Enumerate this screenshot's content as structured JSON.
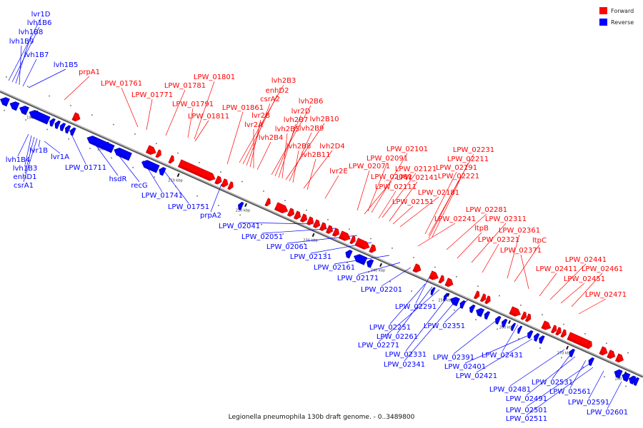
{
  "colors": {
    "forward": "#ff0000",
    "reverse": "#0000ff",
    "forward_dark": "#b00000",
    "reverse_dark": "#0000a0",
    "backbone": "#9a9a9a"
  },
  "legend": [
    {
      "label": "Forward",
      "strand": "forward"
    },
    {
      "label": "Reverse",
      "strand": "reverse"
    }
  ],
  "caption": "Legionella pneumophila 130b draft genome. - 0..3489800",
  "ticks": [
    {
      "label": "190 kbp",
      "s": 0.06
    },
    {
      "label": "200 kbp",
      "s": 0.17
    },
    {
      "label": "210 kbp",
      "s": 0.28
    },
    {
      "label": "220 kbp",
      "s": 0.385
    },
    {
      "label": "230 kbp",
      "s": 0.49
    },
    {
      "label": "240 kbp",
      "s": 0.595
    },
    {
      "label": "250 kbp",
      "s": 0.7
    },
    {
      "label": "260 kbp",
      "s": 0.795
    },
    {
      "label": "270 kbp",
      "s": 0.885
    },
    {
      "label": "280 kbp",
      "s": 0.975
    }
  ],
  "genes": [
    {
      "s": 0.005,
      "len": 0.012,
      "strand": "reverse"
    },
    {
      "s": 0.02,
      "len": 0.012,
      "strand": "reverse"
    },
    {
      "s": 0.035,
      "len": 0.012,
      "strand": "reverse"
    },
    {
      "s": 0.05,
      "len": 0.03,
      "strand": "reverse"
    },
    {
      "s": 0.082,
      "len": 0.006,
      "strand": "reverse"
    },
    {
      "s": 0.09,
      "len": 0.006,
      "strand": "reverse"
    },
    {
      "s": 0.098,
      "len": 0.006,
      "strand": "reverse"
    },
    {
      "s": 0.106,
      "len": 0.006,
      "strand": "reverse"
    },
    {
      "s": 0.114,
      "len": 0.006,
      "strand": "reverse"
    },
    {
      "s": 0.14,
      "len": 0.04,
      "strand": "reverse"
    },
    {
      "s": 0.182,
      "len": 0.025,
      "strand": "reverse"
    },
    {
      "s": 0.225,
      "len": 0.025,
      "strand": "reverse"
    },
    {
      "s": 0.252,
      "len": 0.008,
      "strand": "reverse"
    },
    {
      "s": 0.11,
      "len": 0.01,
      "strand": "forward"
    },
    {
      "s": 0.225,
      "len": 0.013,
      "strand": "forward"
    },
    {
      "s": 0.24,
      "len": 0.006,
      "strand": "forward"
    },
    {
      "s": 0.26,
      "len": 0.006,
      "strand": "forward"
    },
    {
      "s": 0.275,
      "len": 0.055,
      "strand": "forward"
    },
    {
      "s": 0.332,
      "len": 0.008,
      "strand": "forward"
    },
    {
      "s": 0.342,
      "len": 0.008,
      "strand": "forward"
    },
    {
      "s": 0.352,
      "len": 0.006,
      "strand": "forward"
    },
    {
      "s": 0.375,
      "len": 0.006,
      "strand": "reverse"
    },
    {
      "s": 0.41,
      "len": 0.006,
      "strand": "forward"
    },
    {
      "s": 0.425,
      "len": 0.018,
      "strand": "forward"
    },
    {
      "s": 0.445,
      "len": 0.008,
      "strand": "forward"
    },
    {
      "s": 0.455,
      "len": 0.008,
      "strand": "forward"
    },
    {
      "s": 0.465,
      "len": 0.008,
      "strand": "forward"
    },
    {
      "s": 0.475,
      "len": 0.008,
      "strand": "forward"
    },
    {
      "s": 0.485,
      "len": 0.008,
      "strand": "forward"
    },
    {
      "s": 0.495,
      "len": 0.008,
      "strand": "forward"
    },
    {
      "s": 0.505,
      "len": 0.008,
      "strand": "forward"
    },
    {
      "s": 0.515,
      "len": 0.008,
      "strand": "forward"
    },
    {
      "s": 0.525,
      "len": 0.015,
      "strand": "forward"
    },
    {
      "s": 0.542,
      "len": 0.006,
      "strand": "forward"
    },
    {
      "s": 0.55,
      "len": 0.02,
      "strand": "forward"
    },
    {
      "s": 0.572,
      "len": 0.008,
      "strand": "forward"
    },
    {
      "s": 0.542,
      "len": 0.008,
      "strand": "reverse"
    },
    {
      "s": 0.555,
      "len": 0.018,
      "strand": "reverse"
    },
    {
      "s": 0.575,
      "len": 0.008,
      "strand": "reverse"
    },
    {
      "s": 0.64,
      "len": 0.01,
      "strand": "forward"
    },
    {
      "s": 0.665,
      "len": 0.012,
      "strand": "forward"
    },
    {
      "s": 0.68,
      "len": 0.006,
      "strand": "forward"
    },
    {
      "s": 0.69,
      "len": 0.01,
      "strand": "forward"
    },
    {
      "s": 0.675,
      "len": 0.004,
      "strand": "reverse"
    },
    {
      "s": 0.695,
      "len": 0.004,
      "strand": "reverse"
    },
    {
      "s": 0.705,
      "len": 0.012,
      "strand": "reverse"
    },
    {
      "s": 0.72,
      "len": 0.006,
      "strand": "reverse"
    },
    {
      "s": 0.735,
      "len": 0.006,
      "strand": "forward"
    },
    {
      "s": 0.745,
      "len": 0.006,
      "strand": "forward"
    },
    {
      "s": 0.752,
      "len": 0.006,
      "strand": "forward"
    },
    {
      "s": 0.735,
      "len": 0.006,
      "strand": "reverse"
    },
    {
      "s": 0.745,
      "len": 0.01,
      "strand": "reverse"
    },
    {
      "s": 0.758,
      "len": 0.006,
      "strand": "reverse"
    },
    {
      "s": 0.775,
      "len": 0.006,
      "strand": "reverse"
    },
    {
      "s": 0.785,
      "len": 0.006,
      "strand": "reverse"
    },
    {
      "s": 0.79,
      "len": 0.015,
      "strand": "forward"
    },
    {
      "s": 0.808,
      "len": 0.006,
      "strand": "forward"
    },
    {
      "s": 0.815,
      "len": 0.006,
      "strand": "forward"
    },
    {
      "s": 0.8,
      "len": 0.004,
      "strand": "reverse"
    },
    {
      "s": 0.81,
      "len": 0.004,
      "strand": "reverse"
    },
    {
      "s": 0.825,
      "len": 0.006,
      "strand": "reverse"
    },
    {
      "s": 0.835,
      "len": 0.006,
      "strand": "reverse"
    },
    {
      "s": 0.843,
      "len": 0.006,
      "strand": "reverse"
    },
    {
      "s": 0.84,
      "len": 0.012,
      "strand": "forward"
    },
    {
      "s": 0.855,
      "len": 0.006,
      "strand": "forward"
    },
    {
      "s": 0.862,
      "len": 0.006,
      "strand": "forward"
    },
    {
      "s": 0.87,
      "len": 0.006,
      "strand": "forward"
    },
    {
      "s": 0.88,
      "len": 0.035,
      "strand": "forward"
    },
    {
      "s": 0.89,
      "len": 0.006,
      "strand": "reverse"
    },
    {
      "s": 0.91,
      "len": 0.006,
      "strand": "forward"
    },
    {
      "s": 0.92,
      "len": 0.006,
      "strand": "reverse"
    },
    {
      "s": 0.93,
      "len": 0.01,
      "strand": "forward"
    },
    {
      "s": 0.942,
      "len": 0.01,
      "strand": "forward"
    },
    {
      "s": 0.955,
      "len": 0.01,
      "strand": "forward"
    },
    {
      "s": 0.96,
      "len": 0.01,
      "strand": "reverse"
    },
    {
      "s": 0.972,
      "len": 0.01,
      "strand": "reverse"
    },
    {
      "s": 0.983,
      "len": 0.008,
      "strand": "reverse"
    },
    {
      "s": 0.99,
      "len": 0.006,
      "strand": "reverse"
    }
  ],
  "labels": [
    {
      "text": "lvr1D",
      "strand": "reverse"
    },
    {
      "text": "lvh1B6",
      "strand": "reverse"
    },
    {
      "text": "lvh1B8",
      "strand": "reverse"
    },
    {
      "text": "lvh1B9",
      "strand": "reverse"
    },
    {
      "text": "lvh1B7",
      "strand": "reverse"
    },
    {
      "text": "lvh1B5",
      "strand": "reverse"
    },
    {
      "text": "lvh1B4",
      "strand": "reverse"
    },
    {
      "text": "lvh1B3",
      "strand": "reverse"
    },
    {
      "text": "enhD1",
      "strand": "reverse"
    },
    {
      "text": "csrA1",
      "strand": "reverse"
    },
    {
      "text": "lvr1B",
      "strand": "reverse"
    },
    {
      "text": "lvr1A",
      "strand": "reverse"
    },
    {
      "text": "LPW_01711",
      "strand": "reverse"
    },
    {
      "text": "hsdR",
      "strand": "reverse"
    },
    {
      "text": "recG",
      "strand": "reverse"
    },
    {
      "text": "LPW_01741",
      "strand": "reverse"
    },
    {
      "text": "LPW_01751",
      "strand": "reverse"
    },
    {
      "text": "prpA2",
      "strand": "reverse"
    },
    {
      "text": "LPW_02041",
      "strand": "reverse"
    },
    {
      "text": "LPW_02051",
      "strand": "reverse"
    },
    {
      "text": "LPW_02061",
      "strand": "reverse"
    },
    {
      "text": "LPW_02131",
      "strand": "reverse"
    },
    {
      "text": "LPW_02161",
      "strand": "reverse"
    },
    {
      "text": "LPW_02171",
      "strand": "reverse"
    },
    {
      "text": "LPW_02201",
      "strand": "reverse"
    },
    {
      "text": "LPW_02291",
      "strand": "reverse"
    },
    {
      "text": "LPW_02251",
      "strand": "reverse"
    },
    {
      "text": "LPW_02261",
      "strand": "reverse"
    },
    {
      "text": "LPW_02271",
      "strand": "reverse"
    },
    {
      "text": "LPW_02351",
      "strand": "reverse"
    },
    {
      "text": "LPW_02331",
      "strand": "reverse"
    },
    {
      "text": "LPW_02341",
      "strand": "reverse"
    },
    {
      "text": "LPW_02391",
      "strand": "reverse"
    },
    {
      "text": "LPW_02431",
      "strand": "reverse"
    },
    {
      "text": "LPW_02401",
      "strand": "reverse"
    },
    {
      "text": "LPW_02421",
      "strand": "reverse"
    },
    {
      "text": "LPW_02481",
      "strand": "reverse"
    },
    {
      "text": "LPW_02531",
      "strand": "reverse"
    },
    {
      "text": "LPW_02491",
      "strand": "reverse"
    },
    {
      "text": "LPW_02561",
      "strand": "reverse"
    },
    {
      "text": "LPW_02501",
      "strand": "reverse"
    },
    {
      "text": "LPW_02511",
      "strand": "reverse"
    },
    {
      "text": "LPW_02591",
      "strand": "reverse"
    },
    {
      "text": "LPW_02601",
      "strand": "reverse"
    },
    {
      "text": "prpA1",
      "strand": "forward"
    },
    {
      "text": "LPW_01761",
      "strand": "forward"
    },
    {
      "text": "LPW_01771",
      "strand": "forward"
    },
    {
      "text": "LPW_01781",
      "strand": "forward"
    },
    {
      "text": "LPW_01791",
      "strand": "forward"
    },
    {
      "text": "LPW_01801",
      "strand": "forward"
    },
    {
      "text": "LPW_01811",
      "strand": "forward"
    },
    {
      "text": "LPW_01861",
      "strand": "forward"
    },
    {
      "text": "lvh2B3",
      "strand": "forward"
    },
    {
      "text": "enhD2",
      "strand": "forward"
    },
    {
      "text": "csrA2",
      "strand": "forward"
    },
    {
      "text": "lvr2B",
      "strand": "forward"
    },
    {
      "text": "lvr2A",
      "strand": "forward"
    },
    {
      "text": "lvh2B4",
      "strand": "forward"
    },
    {
      "text": "lvh2B6",
      "strand": "forward"
    },
    {
      "text": "lvr2D",
      "strand": "forward"
    },
    {
      "text": "lvh2B7",
      "strand": "forward"
    },
    {
      "text": "lvh2B10",
      "strand": "forward"
    },
    {
      "text": "lvh2B5",
      "strand": "forward"
    },
    {
      "text": "lvh2B9",
      "strand": "forward"
    },
    {
      "text": "lvh2B8",
      "strand": "forward"
    },
    {
      "text": "lvh2D4",
      "strand": "forward"
    },
    {
      "text": "lvh2B11",
      "strand": "forward"
    },
    {
      "text": "lvr2E",
      "strand": "forward"
    },
    {
      "text": "LPW_02101",
      "strand": "forward"
    },
    {
      "text": "LPW_02091",
      "strand": "forward"
    },
    {
      "text": "LPW_02071",
      "strand": "forward"
    },
    {
      "text": "LPW_02121",
      "strand": "forward"
    },
    {
      "text": "LPW_02081",
      "strand": "forward"
    },
    {
      "text": "LPW_02141",
      "strand": "forward"
    },
    {
      "text": "LPW_02111",
      "strand": "forward"
    },
    {
      "text": "LPW_02181",
      "strand": "forward"
    },
    {
      "text": "LPW_02151",
      "strand": "forward"
    },
    {
      "text": "LPW_02231",
      "strand": "forward"
    },
    {
      "text": "LPW_02211",
      "strand": "forward"
    },
    {
      "text": "LPW_02191",
      "strand": "forward"
    },
    {
      "text": "LPW_02221",
      "strand": "forward"
    },
    {
      "text": "LPW_02281",
      "strand": "forward"
    },
    {
      "text": "LPW_02241",
      "strand": "forward"
    },
    {
      "text": "LPW_02311",
      "strand": "forward"
    },
    {
      "text": "ltpB",
      "strand": "forward"
    },
    {
      "text": "LPW_02321",
      "strand": "forward"
    },
    {
      "text": "LPW_02361",
      "strand": "forward"
    },
    {
      "text": "ltpC",
      "strand": "forward"
    },
    {
      "text": "LPW_02371",
      "strand": "forward"
    },
    {
      "text": "LPW_02441",
      "strand": "forward"
    },
    {
      "text": "LPW_02411",
      "strand": "forward"
    },
    {
      "text": "LPW_02461",
      "strand": "forward"
    },
    {
      "text": "LPW_02451",
      "strand": "forward"
    },
    {
      "text": "LPW_02471",
      "strand": "forward"
    }
  ]
}
